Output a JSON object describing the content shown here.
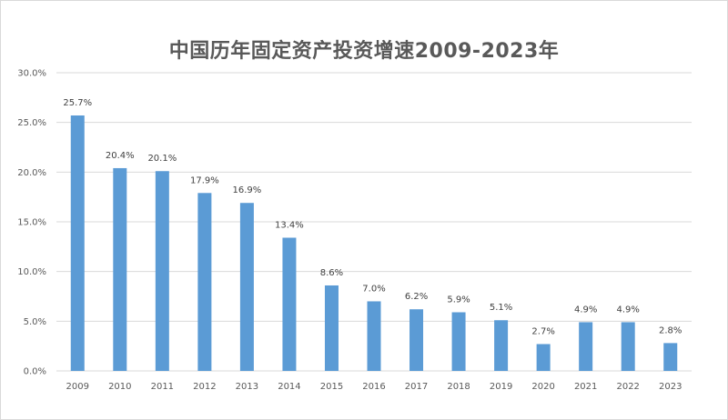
{
  "chart_data": {
    "type": "bar",
    "title": "中国历年固定资产投资增速2009-2023年",
    "categories": [
      "2009",
      "2010",
      "2011",
      "2012",
      "2013",
      "2014",
      "2015",
      "2016",
      "2017",
      "2018",
      "2019",
      "2020",
      "2021",
      "2022",
      "2023"
    ],
    "values": [
      25.7,
      20.4,
      20.1,
      17.9,
      16.9,
      13.4,
      8.6,
      7.0,
      6.2,
      5.9,
      5.1,
      2.7,
      4.9,
      4.9,
      2.8
    ],
    "data_labels": [
      "25.7%",
      "20.4%",
      "20.1%",
      "17.9%",
      "16.9%",
      "13.4%",
      "8.6%",
      "7.0%",
      "6.2%",
      "5.9%",
      "5.1%",
      "2.7%",
      "4.9%",
      "4.9%",
      "2.8%"
    ],
    "y_ticks": [
      0,
      5,
      10,
      15,
      20,
      25,
      30
    ],
    "y_tick_labels": [
      "0.0%",
      "5.0%",
      "10.0%",
      "15.0%",
      "20.0%",
      "25.0%",
      "30.0%"
    ],
    "ylim": [
      0,
      30
    ],
    "grid": true,
    "legend": "none",
    "bar_color": "#5b9bd5",
    "grid_color": "#d9d9d9"
  }
}
